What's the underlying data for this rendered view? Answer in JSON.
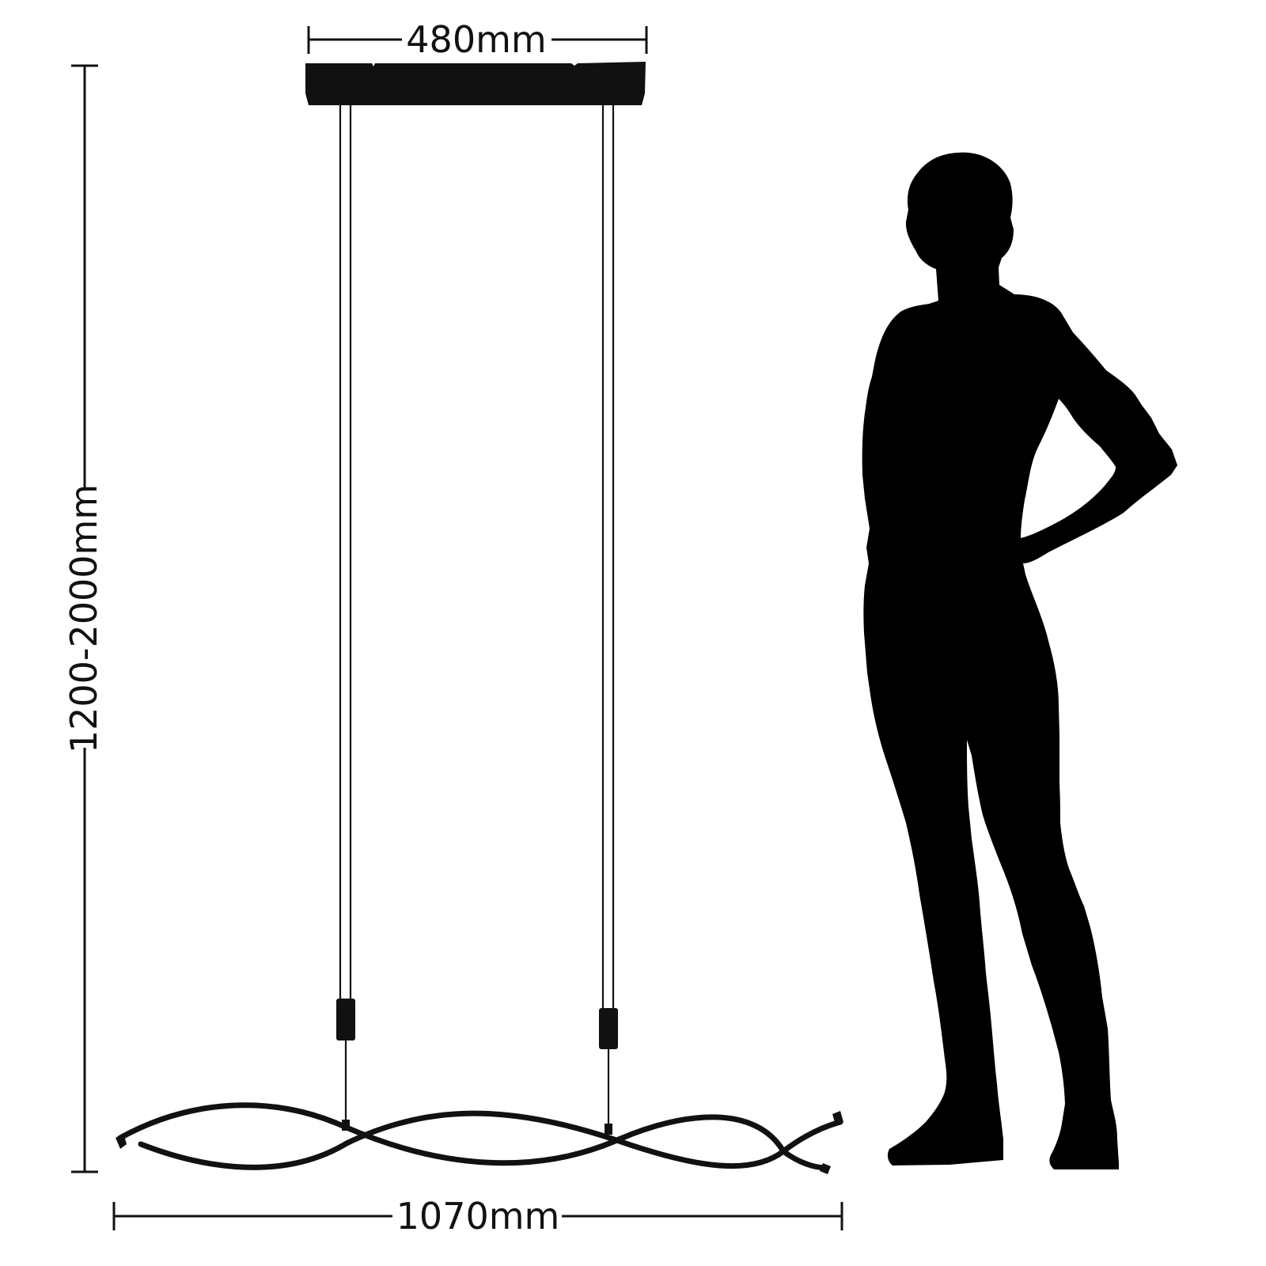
{
  "dimensions": {
    "canopy_width": "480mm",
    "overall_length": "1070mm",
    "suspension_height": "1200-2000mm"
  },
  "colors": {
    "ink": "#111111",
    "silhouette": "#000000",
    "background": "#ffffff"
  }
}
